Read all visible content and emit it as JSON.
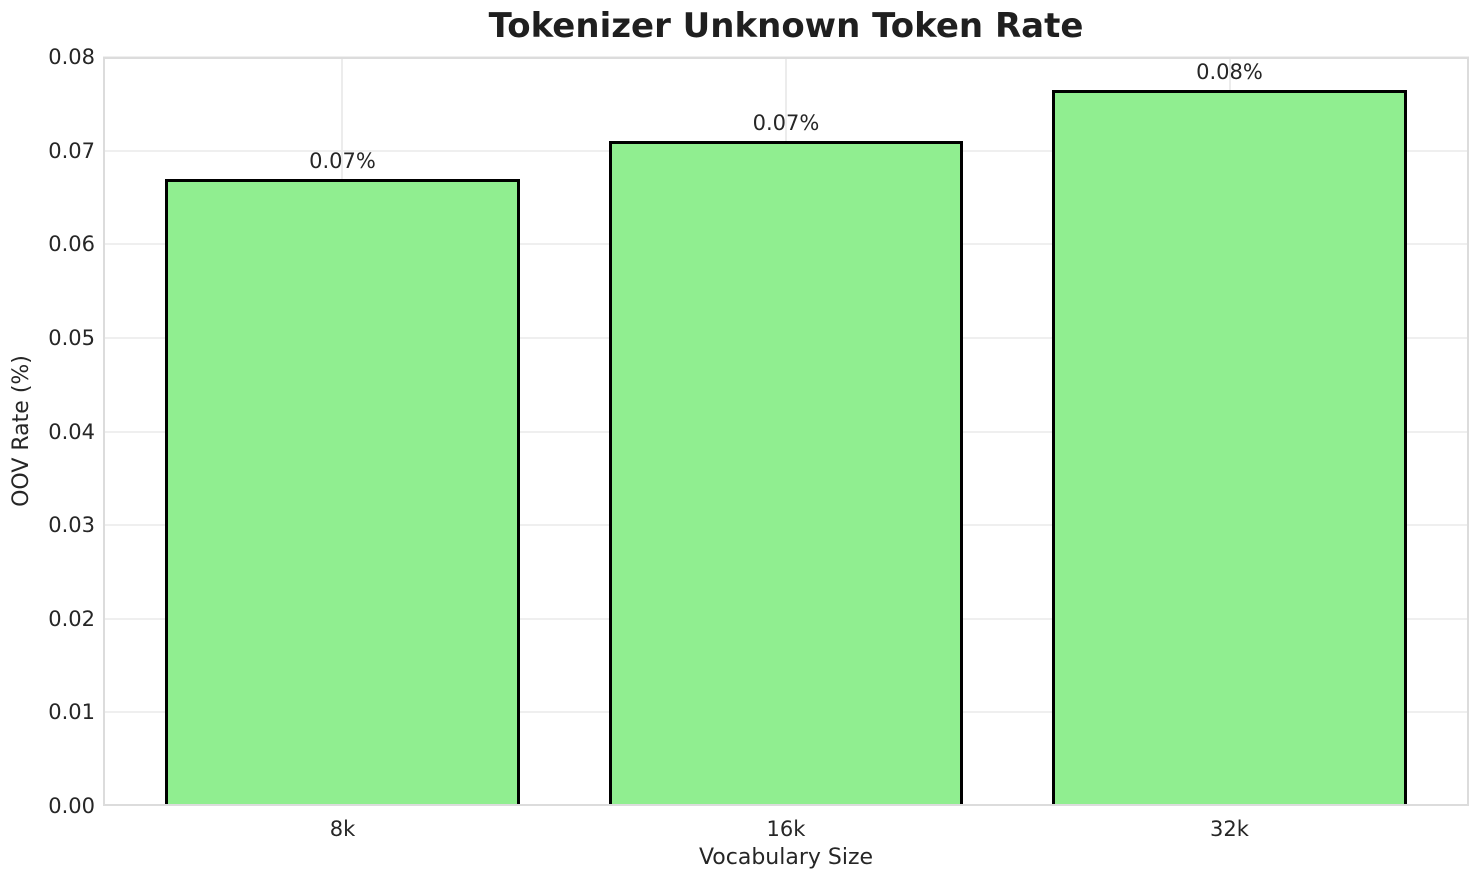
{
  "chart_data": {
    "type": "bar",
    "title": "Tokenizer Unknown Token Rate",
    "xlabel": "Vocabulary Size",
    "ylabel": "OOV Rate (%)",
    "categories": [
      "8k",
      "16k",
      "32k"
    ],
    "values": [
      0.067,
      0.071,
      0.0765
    ],
    "bar_value_labels": [
      "0.07%",
      "0.07%",
      "0.08%"
    ],
    "ylim": [
      0.0,
      0.08
    ],
    "yticks": [
      0.0,
      0.01,
      0.02,
      0.03,
      0.04,
      0.05,
      0.06,
      0.07,
      0.08
    ],
    "ytick_labels": [
      "0.00",
      "0.01",
      "0.02",
      "0.03",
      "0.04",
      "0.05",
      "0.06",
      "0.07",
      "0.08"
    ],
    "legend": "none",
    "grid": "on",
    "colors": {
      "bar_fill": "#90EE90",
      "bar_edge": "#000000",
      "grid_line": "#efefef",
      "spine": "#dcdcdc",
      "text": "#262626",
      "background": "#ffffff"
    }
  }
}
